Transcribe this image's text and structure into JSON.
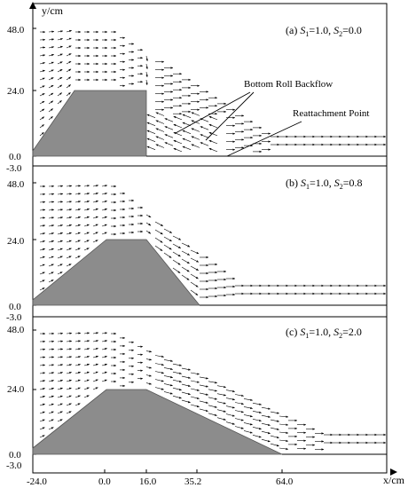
{
  "figure": {
    "y_axis_label": "y/cm",
    "x_axis_label": "x/cm",
    "x_tick_labels": [
      "-24.0",
      "0.0",
      "16.0",
      "35.2",
      "64.0"
    ],
    "y_tick_labels": [
      "48.0",
      "24.0",
      "0.0",
      "-3.0"
    ],
    "colors": {
      "obstacle": "#8c8c8c",
      "arrows": "#000000",
      "frame": "#000000"
    }
  },
  "panels": [
    {
      "id": "a",
      "label_prefix": "(a) ",
      "s1_symbol": "S",
      "s1_sub": "1",
      "s1_val": "=1.0, ",
      "s2_symbol": "S",
      "s2_sub": "2",
      "s2_val": "=0.0",
      "annotations": [
        {
          "text": "Bottom Roll Backflow"
        },
        {
          "text": "Reattachment Point"
        }
      ]
    },
    {
      "id": "b",
      "label_prefix": "(b) ",
      "s1_symbol": "S",
      "s1_sub": "1",
      "s1_val": "=1.0, ",
      "s2_symbol": "S",
      "s2_sub": "2",
      "s2_val": "=0.8",
      "annotations": []
    },
    {
      "id": "c",
      "label_prefix": "(c) ",
      "s1_symbol": "S",
      "s1_sub": "1",
      "s1_val": "=1.0, ",
      "s2_symbol": "S",
      "s2_sub": "2",
      "s2_val": "=2.0",
      "annotations": []
    }
  ]
}
